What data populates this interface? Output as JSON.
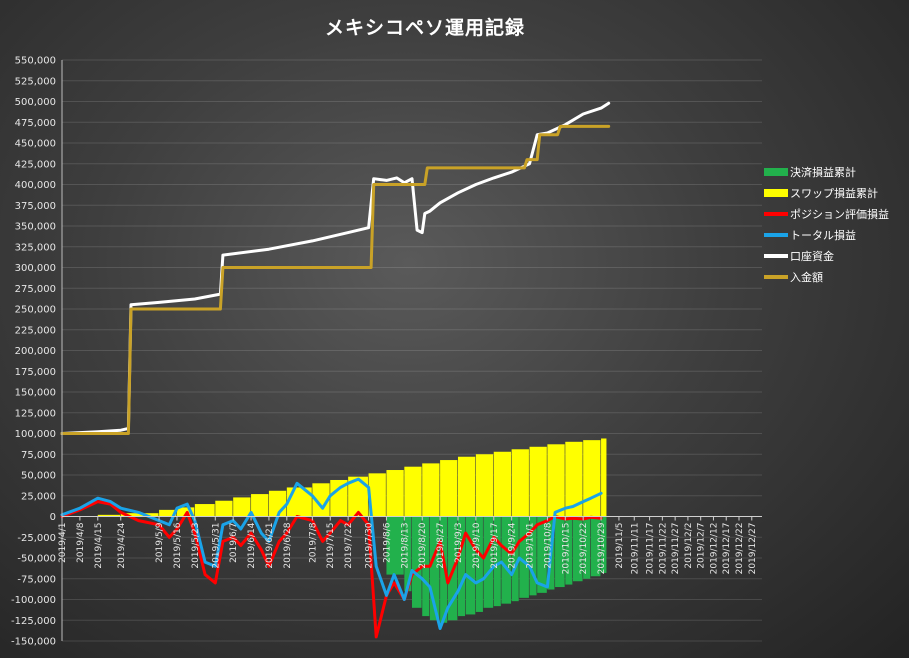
{
  "chart_data": {
    "type": "line",
    "title": "メキシコペソ運用記録",
    "xlabel": "",
    "ylabel": "",
    "ylim": [
      -150000,
      550000
    ],
    "y_ticks": [
      550000,
      525000,
      500000,
      475000,
      450000,
      425000,
      400000,
      375000,
      350000,
      325000,
      300000,
      275000,
      250000,
      225000,
      200000,
      175000,
      150000,
      125000,
      100000,
      75000,
      50000,
      25000,
      0,
      -25000,
      -50000,
      -75000,
      -100000,
      -125000,
      -150000
    ],
    "y_tick_labels": [
      "550,000",
      "525,000",
      "500,000",
      "475,000",
      "450,000",
      "425,000",
      "400,000",
      "375,000",
      "350,000",
      "325,000",
      "300,000",
      "275,000",
      "250,000",
      "225,000",
      "200,000",
      "175,000",
      "150,000",
      "125,000",
      "100,000",
      "75,000",
      "50,000",
      "25,000",
      "0",
      "-25,000",
      "-50,000",
      "-75,000",
      "-100,000",
      "-125,000",
      "-150,000"
    ],
    "x_range": [
      "2019-04-01",
      "2019-12-31"
    ],
    "x_ticks": [
      "2019-04-01",
      "2019-04-08",
      "2019-04-15",
      "2019-04-24",
      "2019-05-09",
      "2019-05-16",
      "2019-05-23",
      "2019-05-31",
      "2019-06-07",
      "2019-06-14",
      "2019-06-21",
      "2019-06-28",
      "2019-07-08",
      "2019-07-15",
      "2019-07-22",
      "2019-07-30",
      "2019-08-06",
      "2019-08-13",
      "2019-08-20",
      "2019-08-27",
      "2019-09-03",
      "2019-09-10",
      "2019-09-17",
      "2019-09-24",
      "2019-10-01",
      "2019-10-08",
      "2019-10-15",
      "2019-10-22",
      "2019-10-29",
      "2019-11-05",
      "2019-11-11",
      "2019-11-17",
      "2019-11-22",
      "2019-11-27",
      "2019-12-02",
      "2019-12-07",
      "2019-12-12",
      "2019-12-17",
      "2019-12-22",
      "2019-12-27"
    ],
    "x_tick_labels": [
      "2019/4/1",
      "2019/4/8",
      "2019/4/15",
      "2019/4/24",
      "2019/5/9",
      "2019/5/16",
      "2019/5/23",
      "2019/5/31",
      "2019/6/7",
      "2019/6/14",
      "2019/6/21",
      "2019/6/28",
      "2019/7/8",
      "2019/7/15",
      "2019/7/22",
      "2019/7/30",
      "2019/8/6",
      "2019/8/13",
      "2019/8/20",
      "2019/8/27",
      "2019/9/3",
      "2019/9/10",
      "2019/9/17",
      "2019/9/24",
      "2019/10/1",
      "2019/10/8",
      "2019/10/15",
      "2019/10/22",
      "2019/10/29",
      "2019/11/5",
      "2019/11/11",
      "2019/11/17",
      "2019/11/22",
      "2019/11/27",
      "2019/12/2",
      "2019/12/7",
      "2019/12/12",
      "2019/12/17",
      "2019/12/22",
      "2019/12/27"
    ],
    "grid": true,
    "legend_position": "right",
    "series": [
      {
        "name": "決済損益累計",
        "kind": "bar",
        "color": "#22b14c",
        "x": [
          "2019-07-22",
          "2019-07-26",
          "2019-07-30",
          "2019-08-01",
          "2019-08-06",
          "2019-08-13",
          "2019-08-16",
          "2019-08-20",
          "2019-08-23",
          "2019-08-27",
          "2019-08-30",
          "2019-09-03",
          "2019-09-06",
          "2019-09-10",
          "2019-09-13",
          "2019-09-17",
          "2019-09-20",
          "2019-09-24",
          "2019-09-27",
          "2019-10-01",
          "2019-10-04",
          "2019-10-08",
          "2019-10-11",
          "2019-10-15",
          "2019-10-18",
          "2019-10-22",
          "2019-10-25",
          "2019-10-29"
        ],
        "y": [
          0,
          0,
          0,
          0,
          -70000,
          -90000,
          -110000,
          -120000,
          -125000,
          -128000,
          -125000,
          -120000,
          -118000,
          -115000,
          -110000,
          -108000,
          -105000,
          -102000,
          -98000,
          -95000,
          -92000,
          -88000,
          -85000,
          -82000,
          -78000,
          -75000,
          -72000,
          -68000
        ]
      },
      {
        "name": "スワップ損益累計",
        "kind": "bar",
        "color": "#ffff00",
        "x": [
          "2019-04-01",
          "2019-04-15",
          "2019-04-24",
          "2019-05-09",
          "2019-05-16",
          "2019-05-23",
          "2019-05-31",
          "2019-06-07",
          "2019-06-14",
          "2019-06-21",
          "2019-06-28",
          "2019-07-08",
          "2019-07-15",
          "2019-07-22",
          "2019-07-30",
          "2019-08-06",
          "2019-08-13",
          "2019-08-20",
          "2019-08-27",
          "2019-09-03",
          "2019-09-10",
          "2019-09-17",
          "2019-09-24",
          "2019-10-01",
          "2019-10-08",
          "2019-10-15",
          "2019-10-22",
          "2019-10-29"
        ],
        "y": [
          0,
          2000,
          4000,
          8000,
          11000,
          15000,
          19000,
          23000,
          27000,
          31000,
          35000,
          40000,
          44000,
          48000,
          52000,
          56000,
          60000,
          64000,
          68000,
          72000,
          75000,
          78000,
          81000,
          84000,
          87000,
          90000,
          92000,
          94000
        ]
      },
      {
        "name": "ポジション評価損益",
        "kind": "line",
        "color": "#ff0000",
        "x": [
          "2019-04-01",
          "2019-04-08",
          "2019-04-15",
          "2019-04-20",
          "2019-04-24",
          "2019-05-01",
          "2019-05-09",
          "2019-05-13",
          "2019-05-16",
          "2019-05-20",
          "2019-05-23",
          "2019-05-27",
          "2019-05-31",
          "2019-06-03",
          "2019-06-07",
          "2019-06-10",
          "2019-06-14",
          "2019-06-18",
          "2019-06-21",
          "2019-06-25",
          "2019-06-28",
          "2019-07-02",
          "2019-07-08",
          "2019-07-12",
          "2019-07-15",
          "2019-07-19",
          "2019-07-22",
          "2019-07-26",
          "2019-07-30",
          "2019-08-02",
          "2019-08-06",
          "2019-08-09",
          "2019-08-13",
          "2019-08-16",
          "2019-08-20",
          "2019-08-23",
          "2019-08-27",
          "2019-08-30",
          "2019-09-03",
          "2019-09-06",
          "2019-09-10",
          "2019-09-13",
          "2019-09-17",
          "2019-09-20",
          "2019-09-24",
          "2019-09-27",
          "2019-10-01",
          "2019-10-04",
          "2019-10-08",
          "2019-10-11",
          "2019-10-15",
          "2019-10-18",
          "2019-10-22",
          "2019-10-25",
          "2019-10-29"
        ],
        "y": [
          0,
          8000,
          18000,
          15000,
          5000,
          -5000,
          -10000,
          -25000,
          -15000,
          5000,
          -20000,
          -70000,
          -80000,
          -30000,
          -25000,
          -35000,
          -20000,
          -40000,
          -60000,
          -30000,
          -20000,
          0,
          -5000,
          -30000,
          -20000,
          -5000,
          -10000,
          5000,
          -10000,
          -145000,
          -95000,
          -80000,
          -100000,
          -70000,
          -60000,
          -60000,
          -30000,
          -80000,
          -50000,
          -20000,
          -40000,
          -50000,
          -25000,
          -35000,
          -45000,
          -30000,
          -20000,
          -10000,
          -5000,
          0,
          -3000,
          -2000,
          -3000,
          -1000,
          -2000
        ]
      },
      {
        "name": "トータル損益",
        "kind": "line",
        "color": "#1aa3e8",
        "x": [
          "2019-04-01",
          "2019-04-08",
          "2019-04-15",
          "2019-04-20",
          "2019-04-24",
          "2019-05-01",
          "2019-05-09",
          "2019-05-13",
          "2019-05-16",
          "2019-05-20",
          "2019-05-23",
          "2019-05-27",
          "2019-05-31",
          "2019-06-03",
          "2019-06-07",
          "2019-06-10",
          "2019-06-14",
          "2019-06-18",
          "2019-06-21",
          "2019-06-25",
          "2019-06-28",
          "2019-07-02",
          "2019-07-08",
          "2019-07-12",
          "2019-07-15",
          "2019-07-19",
          "2019-07-22",
          "2019-07-26",
          "2019-07-30",
          "2019-08-02",
          "2019-08-06",
          "2019-08-09",
          "2019-08-13",
          "2019-08-16",
          "2019-08-20",
          "2019-08-23",
          "2019-08-27",
          "2019-08-30",
          "2019-09-03",
          "2019-09-06",
          "2019-09-10",
          "2019-09-13",
          "2019-09-17",
          "2019-09-20",
          "2019-09-24",
          "2019-09-27",
          "2019-10-01",
          "2019-10-04",
          "2019-10-08",
          "2019-10-11",
          "2019-10-15",
          "2019-10-18",
          "2019-10-22",
          "2019-10-25",
          "2019-10-29"
        ],
        "y": [
          2000,
          10000,
          22000,
          18000,
          10000,
          5000,
          -5000,
          -10000,
          10000,
          15000,
          -5000,
          -55000,
          -60000,
          -10000,
          -5000,
          -15000,
          5000,
          -20000,
          -30000,
          5000,
          15000,
          40000,
          25000,
          10000,
          25000,
          35000,
          40000,
          45000,
          35000,
          -60000,
          -95000,
          -70000,
          -100000,
          -65000,
          -75000,
          -85000,
          -135000,
          -110000,
          -90000,
          -70000,
          -80000,
          -75000,
          -60000,
          -55000,
          -70000,
          -50000,
          -60000,
          -80000,
          -85000,
          5000,
          10000,
          12000,
          18000,
          22000,
          28000
        ]
      },
      {
        "name": "口座資金",
        "kind": "line",
        "color": "#ffffff",
        "x": [
          "2019-04-01",
          "2019-04-15",
          "2019-04-24",
          "2019-04-27",
          "2019-04-28",
          "2019-05-09",
          "2019-05-23",
          "2019-06-02",
          "2019-06-03",
          "2019-06-21",
          "2019-07-08",
          "2019-07-22",
          "2019-07-30",
          "2019-08-01",
          "2019-08-06",
          "2019-08-10",
          "2019-08-13",
          "2019-08-16",
          "2019-08-18",
          "2019-08-20",
          "2019-08-21",
          "2019-08-23",
          "2019-08-27",
          "2019-09-03",
          "2019-09-10",
          "2019-09-17",
          "2019-09-24",
          "2019-10-01",
          "2019-10-04",
          "2019-10-08",
          "2019-10-15",
          "2019-10-22",
          "2019-10-29",
          "2019-11-01"
        ],
        "y": [
          100000,
          102000,
          104000,
          106000,
          255000,
          258000,
          262000,
          268000,
          315000,
          322000,
          332000,
          342000,
          348000,
          407000,
          405000,
          408000,
          402000,
          407000,
          345000,
          342000,
          365000,
          368000,
          378000,
          390000,
          400000,
          408000,
          415000,
          425000,
          460000,
          462000,
          472000,
          485000,
          492000,
          498000
        ]
      },
      {
        "name": "入金額",
        "kind": "line",
        "color": "#c9a227",
        "x": [
          "2019-04-01",
          "2019-04-27",
          "2019-04-28",
          "2019-06-02",
          "2019-06-03",
          "2019-07-31",
          "2019-08-01",
          "2019-08-21",
          "2019-08-22",
          "2019-09-29",
          "2019-09-30",
          "2019-10-04",
          "2019-10-05",
          "2019-10-12",
          "2019-10-13",
          "2019-11-01"
        ],
        "y": [
          100000,
          100000,
          250000,
          250000,
          300000,
          300000,
          400000,
          400000,
          420000,
          420000,
          430000,
          430000,
          460000,
          460000,
          470000,
          470000
        ]
      }
    ]
  }
}
